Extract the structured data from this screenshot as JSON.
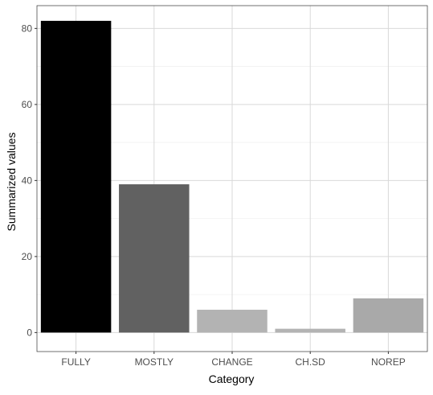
{
  "chart_data": {
    "type": "bar",
    "title": "",
    "xlabel": "Category",
    "ylabel": "Summarized values",
    "categories": [
      "FULLY",
      "MOSTLY",
      "CHANGE",
      "CH.SD",
      "NOREP"
    ],
    "values": [
      82,
      39,
      6,
      1,
      9
    ],
    "bar_colors": [
      "#000000",
      "#616161",
      "#b3b3b3",
      "#b3b3b3",
      "#a9a9a9"
    ],
    "ylim": [
      -5,
      86
    ],
    "yticks": [
      0,
      20,
      40,
      60,
      80
    ],
    "grid": true,
    "theme": {
      "panel_border": "#333333",
      "grid_major": "#d9d9d9",
      "grid_minor": "#ebebeb",
      "tick_color": "#333333"
    }
  }
}
